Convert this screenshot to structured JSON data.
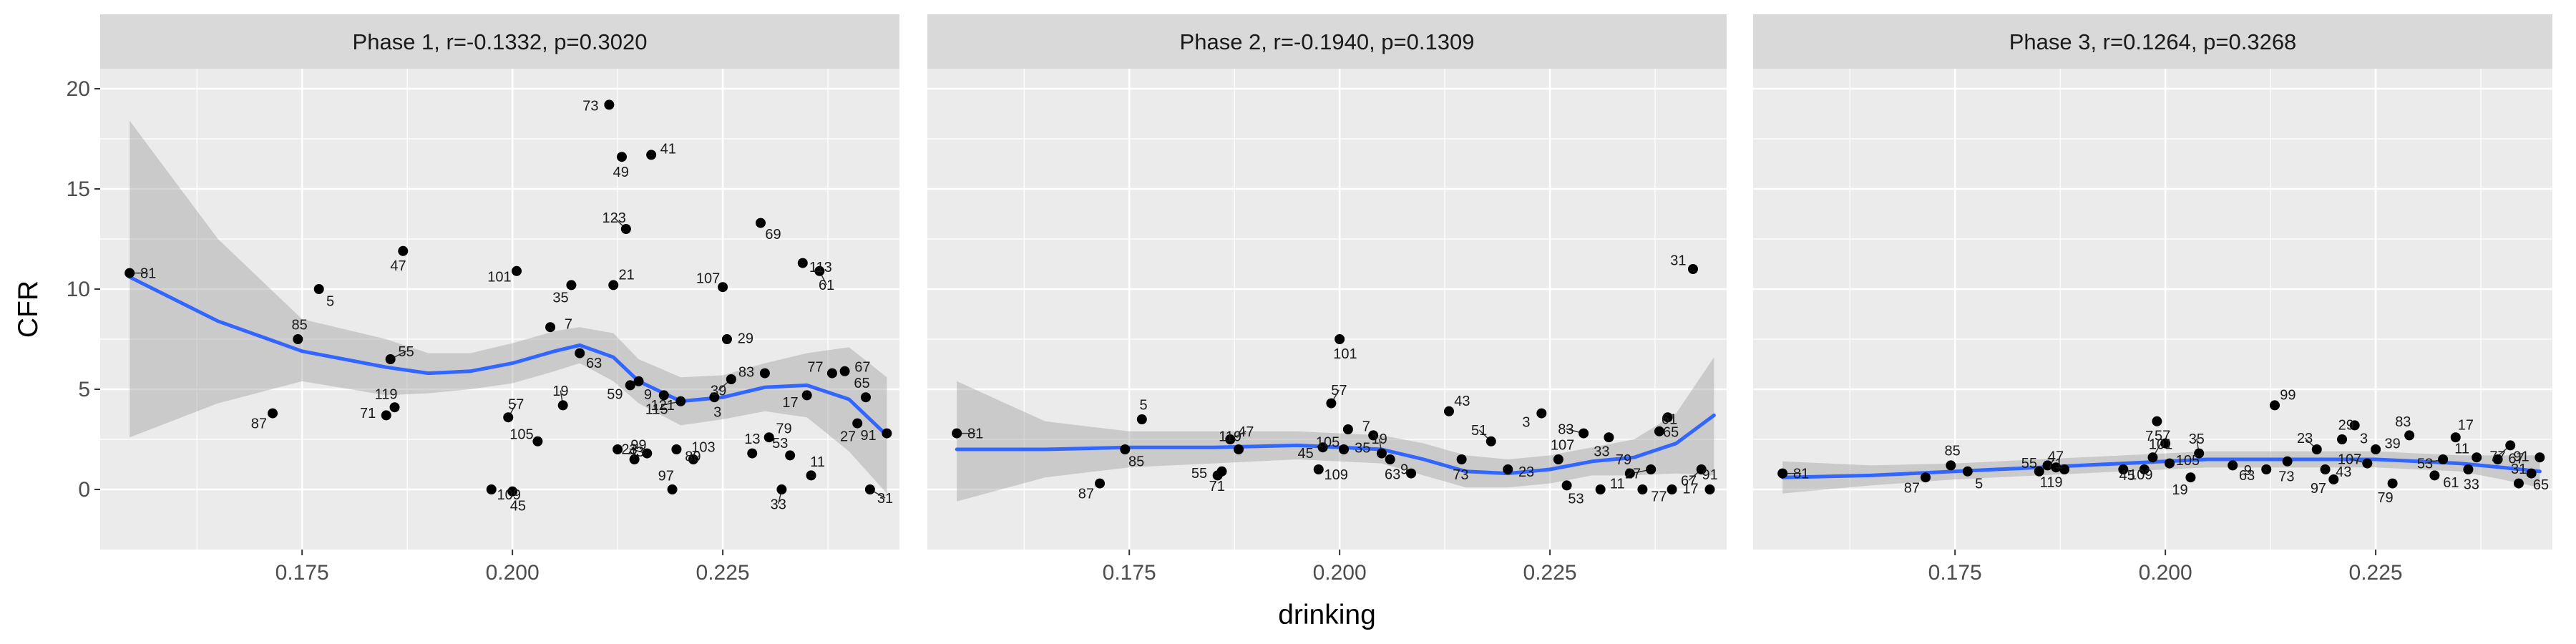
{
  "chart_data": {
    "type": "scatter",
    "xlabel": "drinking",
    "ylabel": "CFR",
    "xlim": [
      0.151,
      0.246
    ],
    "ylim": [
      -3,
      21
    ],
    "xticks": [
      0.175,
      0.2,
      0.225
    ],
    "xtick_labels": [
      "0.175",
      "0.200",
      "0.225"
    ],
    "yticks": [
      0,
      5,
      10,
      15,
      20
    ],
    "ytick_labels": [
      "0",
      "5",
      "10",
      "15",
      "20"
    ],
    "grid": true,
    "colors": {
      "panel_bg": "#ebebeb",
      "strip_bg": "#d9d9d9",
      "grid": "#ffffff",
      "point": "#000000",
      "smooth_line": "#3366ff",
      "ribbon": "#999999"
    },
    "panels": [
      {
        "strip": "Phase 1, r=-0.1332, p=0.3020",
        "points": [
          {
            "x": 0.1545,
            "y": 10.8,
            "label": "81"
          },
          {
            "x": 0.1715,
            "y": 3.8,
            "label": "87"
          },
          {
            "x": 0.1745,
            "y": 7.5,
            "label": "85"
          },
          {
            "x": 0.177,
            "y": 10.0,
            "label": "5"
          },
          {
            "x": 0.185,
            "y": 3.7,
            "label": "71"
          },
          {
            "x": 0.1855,
            "y": 6.5,
            "label": "55"
          },
          {
            "x": 0.187,
            "y": 11.9,
            "label": "47"
          },
          {
            "x": 0.186,
            "y": 4.1,
            "label": "119"
          },
          {
            "x": 0.1975,
            "y": 0.0,
            "label": "109"
          },
          {
            "x": 0.2005,
            "y": 10.9,
            "label": "101"
          },
          {
            "x": 0.1995,
            "y": 3.6,
            "label": "57"
          },
          {
            "x": 0.2,
            "y": -0.1,
            "label": "45"
          },
          {
            "x": 0.203,
            "y": 2.4,
            "label": "105"
          },
          {
            "x": 0.2045,
            "y": 8.1,
            "label": "7"
          },
          {
            "x": 0.207,
            "y": 10.2,
            "label": "35"
          },
          {
            "x": 0.206,
            "y": 4.2,
            "label": "19"
          },
          {
            "x": 0.208,
            "y": 6.8,
            "label": "63"
          },
          {
            "x": 0.2115,
            "y": 19.2,
            "label": "73"
          },
          {
            "x": 0.212,
            "y": 10.2,
            "label": "21"
          },
          {
            "x": 0.213,
            "y": 16.6,
            "label": "49"
          },
          {
            "x": 0.2135,
            "y": 13.0,
            "label": "123"
          },
          {
            "x": 0.2125,
            "y": 2.0,
            "label": "43"
          },
          {
            "x": 0.214,
            "y": 5.2,
            "label": "59"
          },
          {
            "x": 0.2145,
            "y": 1.5,
            "label": "99"
          },
          {
            "x": 0.215,
            "y": 5.4,
            "label": "9"
          },
          {
            "x": 0.216,
            "y": 1.8,
            "label": "23"
          },
          {
            "x": 0.2165,
            "y": 16.7,
            "label": "41"
          },
          {
            "x": 0.218,
            "y": 4.7,
            "label": "115"
          },
          {
            "x": 0.219,
            "y": 0.0,
            "label": "97"
          },
          {
            "x": 0.2195,
            "y": 2.0,
            "label": "89"
          },
          {
            "x": 0.22,
            "y": 4.4,
            "label": "121"
          },
          {
            "x": 0.2215,
            "y": 1.5,
            "label": "103"
          },
          {
            "x": 0.224,
            "y": 4.6,
            "label": "3"
          },
          {
            "x": 0.225,
            "y": 10.1,
            "label": "107"
          },
          {
            "x": 0.2255,
            "y": 7.5,
            "label": "29"
          },
          {
            "x": 0.226,
            "y": 5.5,
            "label": "39"
          },
          {
            "x": 0.2285,
            "y": 1.8,
            "label": "13"
          },
          {
            "x": 0.2295,
            "y": 13.3,
            "label": "69"
          },
          {
            "x": 0.23,
            "y": 5.8,
            "label": "83"
          },
          {
            "x": 0.2305,
            "y": 2.6,
            "label": "79"
          },
          {
            "x": 0.232,
            "y": 0.0,
            "label": "33"
          },
          {
            "x": 0.233,
            "y": 1.7,
            "label": "53"
          },
          {
            "x": 0.2345,
            "y": 11.3,
            "label": "113"
          },
          {
            "x": 0.235,
            "y": 4.7,
            "label": "17"
          },
          {
            "x": 0.2355,
            "y": 0.7,
            "label": "11"
          },
          {
            "x": 0.2365,
            "y": 10.9,
            "label": "61"
          },
          {
            "x": 0.238,
            "y": 5.8,
            "label": "77"
          },
          {
            "x": 0.2395,
            "y": 5.9,
            "label": "67"
          },
          {
            "x": 0.241,
            "y": 3.3,
            "label": "27"
          },
          {
            "x": 0.242,
            "y": 4.6,
            "label": "65"
          },
          {
            "x": 0.2425,
            "y": 0.0,
            "label": "31"
          },
          {
            "x": 0.2445,
            "y": 2.8,
            "label": "91"
          }
        ],
        "smooth": {
          "x": [
            0.1545,
            0.165,
            0.175,
            0.185,
            0.19,
            0.195,
            0.2,
            0.205,
            0.208,
            0.212,
            0.215,
            0.22,
            0.225,
            0.23,
            0.235,
            0.24,
            0.2445
          ],
          "y": [
            10.6,
            8.4,
            6.9,
            6.1,
            5.8,
            5.9,
            6.3,
            6.9,
            7.2,
            6.6,
            5.4,
            4.4,
            4.6,
            5.1,
            5.2,
            4.5,
            2.7
          ],
          "lower": [
            2.6,
            4.3,
            5.4,
            4.7,
            4.8,
            5.0,
            5.3,
            5.9,
            6.3,
            5.4,
            4.3,
            3.2,
            3.5,
            3.9,
            3.6,
            1.9,
            -0.2
          ],
          "upper": [
            18.4,
            12.5,
            8.5,
            7.5,
            6.8,
            6.8,
            7.3,
            7.9,
            8.1,
            7.8,
            6.5,
            5.6,
            5.7,
            6.3,
            6.8,
            7.1,
            5.6
          ]
        }
      },
      {
        "strip": "Phase 2, r=-0.1940, p=0.1309",
        "points": [
          {
            "x": 0.1545,
            "y": 2.8,
            "label": "81"
          },
          {
            "x": 0.1715,
            "y": 0.3,
            "label": "87"
          },
          {
            "x": 0.1765,
            "y": 3.5,
            "label": "5"
          },
          {
            "x": 0.1745,
            "y": 2.0,
            "label": "85"
          },
          {
            "x": 0.1855,
            "y": 0.7,
            "label": "55"
          },
          {
            "x": 0.187,
            "y": 2.5,
            "label": "47"
          },
          {
            "x": 0.186,
            "y": 0.9,
            "label": "71"
          },
          {
            "x": 0.188,
            "y": 2.0,
            "label": "119"
          },
          {
            "x": 0.1975,
            "y": 1.0,
            "label": "109"
          },
          {
            "x": 0.198,
            "y": 2.1,
            "label": "45"
          },
          {
            "x": 0.199,
            "y": 4.3,
            "label": "57"
          },
          {
            "x": 0.2,
            "y": 7.5,
            "label": "101"
          },
          {
            "x": 0.2005,
            "y": 2.0,
            "label": "105"
          },
          {
            "x": 0.201,
            "y": 3.0,
            "label": "7"
          },
          {
            "x": 0.204,
            "y": 2.7,
            "label": "35"
          },
          {
            "x": 0.205,
            "y": 1.8,
            "label": "19"
          },
          {
            "x": 0.206,
            "y": 1.5,
            "label": "9"
          },
          {
            "x": 0.2085,
            "y": 0.8,
            "label": "63"
          },
          {
            "x": 0.213,
            "y": 3.9,
            "label": "43"
          },
          {
            "x": 0.2145,
            "y": 1.5,
            "label": "73"
          },
          {
            "x": 0.218,
            "y": 2.4,
            "label": "51"
          },
          {
            "x": 0.22,
            "y": 1.0,
            "label": "23"
          },
          {
            "x": 0.224,
            "y": 3.8,
            "label": "3"
          },
          {
            "x": 0.226,
            "y": 1.5,
            "label": "107"
          },
          {
            "x": 0.227,
            "y": 0.2,
            "label": "53"
          },
          {
            "x": 0.229,
            "y": 2.8,
            "label": "83"
          },
          {
            "x": 0.231,
            "y": 0.0,
            "label": "11"
          },
          {
            "x": 0.232,
            "y": 2.6,
            "label": "33"
          },
          {
            "x": 0.2345,
            "y": 0.8,
            "label": "79"
          },
          {
            "x": 0.236,
            "y": 0.0,
            "label": "77"
          },
          {
            "x": 0.237,
            "y": 1.0,
            "label": "27"
          },
          {
            "x": 0.238,
            "y": 2.9,
            "label": "61"
          },
          {
            "x": 0.239,
            "y": 3.6,
            "label": "65"
          },
          {
            "x": 0.242,
            "y": 11.0,
            "label": "31"
          },
          {
            "x": 0.2395,
            "y": 0.0,
            "label": "17"
          },
          {
            "x": 0.243,
            "y": 1.0,
            "label": "67"
          },
          {
            "x": 0.244,
            "y": 0.0,
            "label": "91"
          }
        ],
        "smooth": {
          "x": [
            0.1545,
            0.165,
            0.175,
            0.185,
            0.195,
            0.205,
            0.21,
            0.215,
            0.22,
            0.225,
            0.23,
            0.235,
            0.24,
            0.2445
          ],
          "y": [
            2.0,
            2.0,
            2.1,
            2.1,
            2.2,
            2.0,
            1.5,
            0.9,
            0.8,
            1.0,
            1.4,
            1.6,
            2.3,
            3.7
          ],
          "lower": [
            -0.6,
            0.6,
            1.1,
            1.3,
            1.5,
            1.3,
            0.7,
            0.1,
            0.1,
            0.3,
            0.7,
            0.7,
            0.8,
            0.7
          ],
          "upper": [
            5.4,
            3.4,
            2.9,
            2.9,
            2.9,
            2.7,
            2.3,
            1.7,
            1.5,
            1.7,
            2.1,
            2.5,
            3.8,
            6.6
          ]
        }
      },
      {
        "strip": "Phase 3, r=0.1264, p=0.3268",
        "points": [
          {
            "x": 0.1545,
            "y": 0.8,
            "label": "81"
          },
          {
            "x": 0.1715,
            "y": 0.6,
            "label": "87"
          },
          {
            "x": 0.1745,
            "y": 1.2,
            "label": "85"
          },
          {
            "x": 0.1765,
            "y": 0.9,
            "label": "5"
          },
          {
            "x": 0.186,
            "y": 1.2,
            "label": "55"
          },
          {
            "x": 0.185,
            "y": 0.9,
            "label": "71"
          },
          {
            "x": 0.187,
            "y": 1.1,
            "label": "119"
          },
          {
            "x": 0.188,
            "y": 1.0,
            "label": "47"
          },
          {
            "x": 0.195,
            "y": 1.0,
            "label": "109"
          },
          {
            "x": 0.1975,
            "y": 1.0,
            "label": "45"
          },
          {
            "x": 0.1985,
            "y": 1.6,
            "label": "101"
          },
          {
            "x": 0.199,
            "y": 3.4,
            "label": "57"
          },
          {
            "x": 0.2,
            "y": 2.3,
            "label": "7"
          },
          {
            "x": 0.2005,
            "y": 1.3,
            "label": "105"
          },
          {
            "x": 0.203,
            "y": 0.6,
            "label": "19"
          },
          {
            "x": 0.204,
            "y": 1.8,
            "label": "35"
          },
          {
            "x": 0.208,
            "y": 1.2,
            "label": "63"
          },
          {
            "x": 0.212,
            "y": 1.0,
            "label": "9"
          },
          {
            "x": 0.213,
            "y": 4.2,
            "label": "99"
          },
          {
            "x": 0.2145,
            "y": 1.4,
            "label": "73"
          },
          {
            "x": 0.218,
            "y": 2.0,
            "label": "23"
          },
          {
            "x": 0.219,
            "y": 1.0,
            "label": "43"
          },
          {
            "x": 0.22,
            "y": 0.5,
            "label": "97"
          },
          {
            "x": 0.221,
            "y": 2.5,
            "label": "29"
          },
          {
            "x": 0.2225,
            "y": 3.2,
            "label": "3"
          },
          {
            "x": 0.224,
            "y": 1.3,
            "label": "107"
          },
          {
            "x": 0.225,
            "y": 2.0,
            "label": "39"
          },
          {
            "x": 0.227,
            "y": 0.3,
            "label": "79"
          },
          {
            "x": 0.229,
            "y": 2.7,
            "label": "83"
          },
          {
            "x": 0.232,
            "y": 0.7,
            "label": "61"
          },
          {
            "x": 0.233,
            "y": 1.5,
            "label": "53"
          },
          {
            "x": 0.2345,
            "y": 2.6,
            "label": "17"
          },
          {
            "x": 0.236,
            "y": 1.0,
            "label": "33"
          },
          {
            "x": 0.237,
            "y": 1.6,
            "label": "11"
          },
          {
            "x": 0.2395,
            "y": 1.5,
            "label": "67"
          },
          {
            "x": 0.241,
            "y": 2.2,
            "label": "77"
          },
          {
            "x": 0.242,
            "y": 0.3,
            "label": "31"
          },
          {
            "x": 0.2435,
            "y": 0.8,
            "label": "65"
          },
          {
            "x": 0.2445,
            "y": 1.6,
            "label": "91"
          }
        ],
        "smooth": {
          "x": [
            0.1545,
            0.165,
            0.175,
            0.185,
            0.195,
            0.2,
            0.205,
            0.21,
            0.215,
            0.22,
            0.225,
            0.23,
            0.235,
            0.24,
            0.2445
          ],
          "y": [
            0.6,
            0.7,
            0.9,
            1.1,
            1.3,
            1.4,
            1.5,
            1.5,
            1.5,
            1.5,
            1.5,
            1.4,
            1.3,
            1.1,
            0.9
          ],
          "lower": [
            -0.2,
            0.2,
            0.5,
            0.7,
            0.9,
            1.0,
            1.1,
            1.1,
            1.1,
            1.1,
            1.1,
            1.0,
            0.9,
            0.5,
            0.1
          ],
          "upper": [
            1.4,
            1.2,
            1.3,
            1.5,
            1.7,
            1.8,
            1.9,
            1.9,
            1.9,
            1.9,
            1.9,
            1.8,
            1.7,
            1.7,
            1.7
          ]
        }
      }
    ]
  }
}
